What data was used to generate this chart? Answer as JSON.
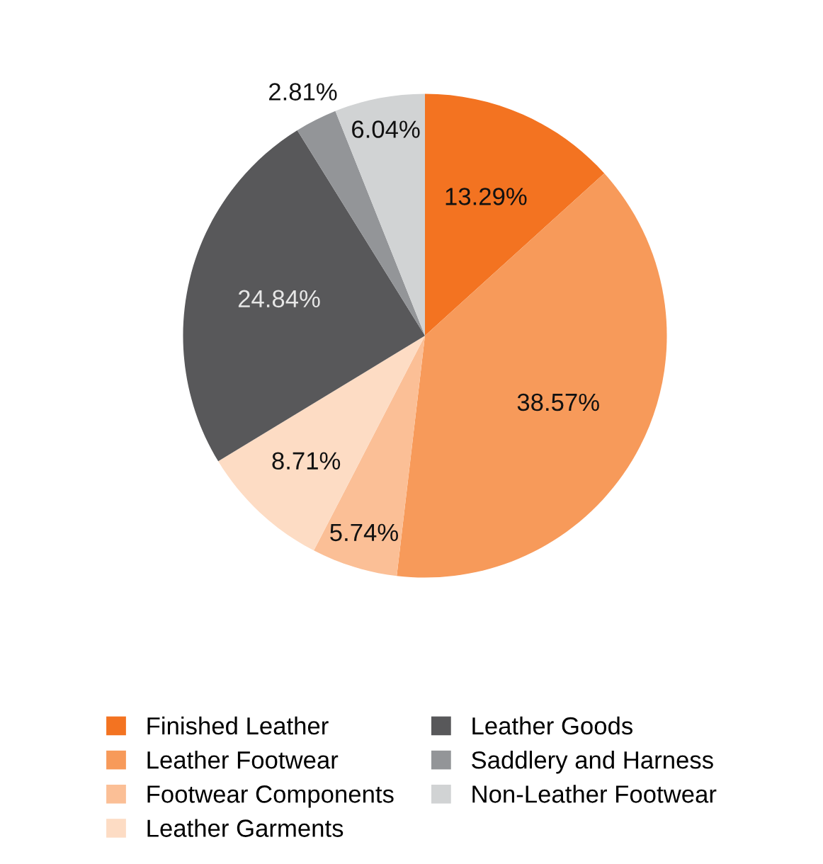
{
  "chart_data": {
    "type": "pie",
    "categories": [
      "Finished Leather",
      "Leather Footwear",
      "Footwear Components",
      "Leather Garments",
      "Leather Goods",
      "Saddlery and Harness",
      "Non-Leather Footwear"
    ],
    "values": [
      13.29,
      38.57,
      5.74,
      8.71,
      24.84,
      2.81,
      6.04
    ],
    "value_labels": [
      "13.29%",
      "38.57%",
      "5.74%",
      "8.71%",
      "24.84%",
      "2.81%",
      "6.04%"
    ],
    "colors": [
      "#f37321",
      "#f79a5a",
      "#fbbf96",
      "#fddcc4",
      "#58585a",
      "#939598",
      "#d1d3d4"
    ],
    "legend": "bottom"
  }
}
